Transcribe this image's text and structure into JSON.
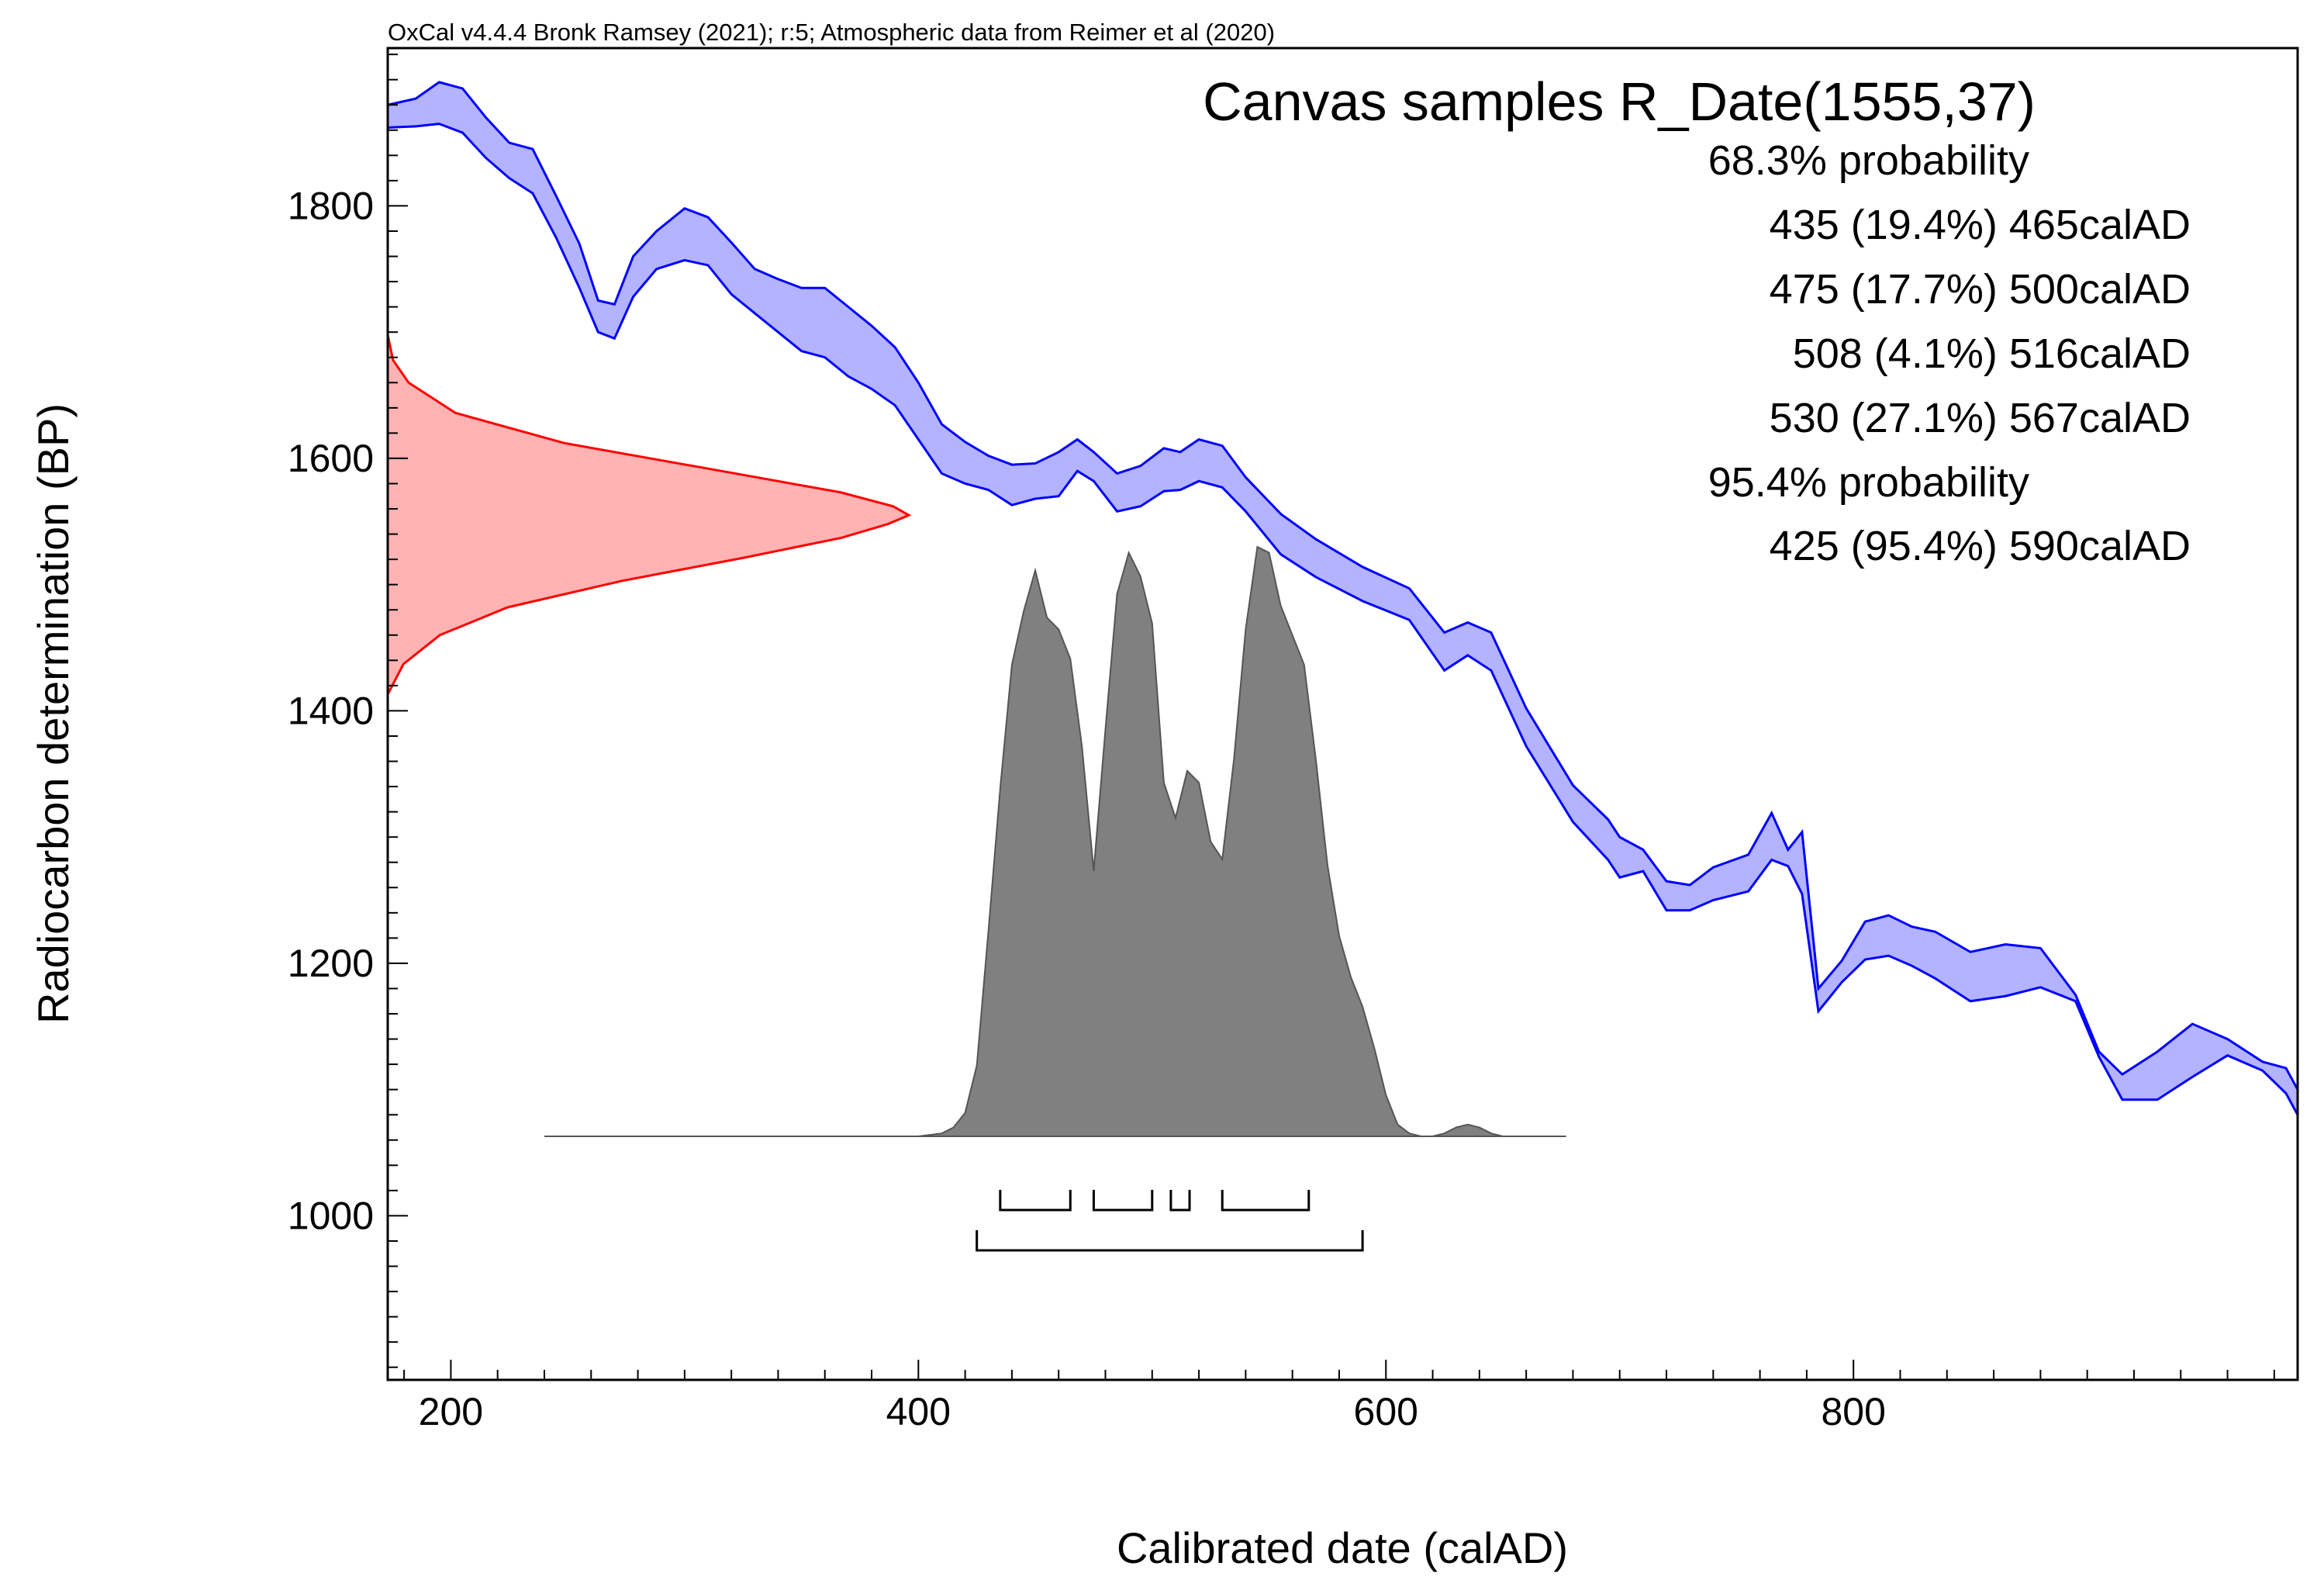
{
  "chart_data": {
    "type": "area",
    "credit": "OxCal v4.4.4 Bronk Ramsey (2021); r:5; Atmospheric data from Reimer et al (2020)",
    "title": "Canvas samples R_Date(1555,37)",
    "xlabel": "Calibrated date (calAD)",
    "ylabel": "Radiocarbon determination (BP)",
    "xlim": [
      173,
      990
    ],
    "ylim": [
      870,
      1925
    ],
    "x_ticks": [
      200,
      400,
      600,
      800
    ],
    "y_ticks": [
      1000,
      1200,
      1400,
      1600,
      1800
    ],
    "grid": false,
    "colors": {
      "calibration_curve": "#0000ff",
      "calibration_fill": "#b3b3ff",
      "radiocarbon": "#ff0000",
      "radiocarbon_fill": "#ffb3b3",
      "posterior": "#808080"
    },
    "radiocarbon_date": {
      "mean_bp": 1555,
      "error": 37
    },
    "probability_ranges": {
      "sigma1_header": "68.3% probability",
      "sigma1": [
        {
          "text": "435 (19.4%) 465calAD",
          "from": 435,
          "to": 465
        },
        {
          "text": "475 (17.7%) 500calAD",
          "from": 475,
          "to": 500
        },
        {
          "text": "508 (4.1%) 516calAD",
          "from": 508,
          "to": 516
        },
        {
          "text": "530 (27.1%) 567calAD",
          "from": 530,
          "to": 567
        }
      ],
      "sigma2_header": "95.4% probability",
      "sigma2": [
        {
          "text": "425 (95.4%) 590calAD",
          "from": 425,
          "to": 590
        }
      ]
    },
    "calibration_curve": {
      "x": [
        173,
        185,
        195,
        205,
        215,
        225,
        235,
        245,
        255,
        263,
        270,
        278,
        288,
        300,
        310,
        320,
        330,
        340,
        350,
        360,
        370,
        380,
        390,
        400,
        410,
        420,
        430,
        440,
        450,
        460,
        468,
        475,
        485,
        495,
        505,
        512,
        520,
        530,
        540,
        555,
        570,
        590,
        610,
        625,
        635,
        645,
        660,
        680,
        695,
        700,
        710,
        720,
        730,
        740,
        755,
        765,
        772,
        778,
        785,
        795,
        805,
        815,
        825,
        835,
        850,
        865,
        880,
        895,
        905,
        915,
        930,
        945,
        960,
        975,
        985,
        990
      ],
      "lower": [
        1862,
        1863,
        1865,
        1858,
        1838,
        1822,
        1810,
        1775,
        1735,
        1700,
        1695,
        1728,
        1750,
        1757,
        1753,
        1730,
        1715,
        1700,
        1685,
        1680,
        1665,
        1655,
        1642,
        1615,
        1588,
        1580,
        1575,
        1563,
        1568,
        1570,
        1590,
        1582,
        1558,
        1562,
        1574,
        1575,
        1582,
        1577,
        1558,
        1524,
        1506,
        1487,
        1472,
        1432,
        1444,
        1432,
        1372,
        1312,
        1282,
        1268,
        1273,
        1242,
        1242,
        1250,
        1257,
        1282,
        1277,
        1255,
        1162,
        1185,
        1203,
        1206,
        1198,
        1188,
        1170,
        1174,
        1181,
        1170,
        1126,
        1092,
        1092,
        1110,
        1127,
        1115,
        1097,
        1080
      ],
      "upper": [
        1880,
        1885,
        1898,
        1893,
        1870,
        1850,
        1845,
        1808,
        1770,
        1725,
        1722,
        1760,
        1780,
        1798,
        1791,
        1771,
        1750,
        1742,
        1735,
        1735,
        1720,
        1705,
        1688,
        1660,
        1627,
        1613,
        1602,
        1595,
        1596,
        1605,
        1615,
        1605,
        1588,
        1594,
        1608,
        1605,
        1615,
        1610,
        1585,
        1556,
        1536,
        1514,
        1497,
        1462,
        1470,
        1462,
        1402,
        1341,
        1314,
        1300,
        1290,
        1265,
        1262,
        1276,
        1286,
        1319,
        1290,
        1304,
        1180,
        1202,
        1233,
        1238,
        1229,
        1225,
        1209,
        1215,
        1212,
        1175,
        1130,
        1112,
        1130,
        1152,
        1140,
        1122,
        1117,
        1100
      ]
    },
    "radiocarbon_distribution": {
      "y": [
        1413,
        1437,
        1460,
        1482,
        1503,
        1521,
        1537,
        1548,
        1555,
        1562,
        1573,
        1590,
        1612,
        1636,
        1660,
        1678,
        1698
      ],
      "density": [
        0,
        0.03,
        0.1,
        0.23,
        0.45,
        0.68,
        0.87,
        0.96,
        1.0,
        0.97,
        0.87,
        0.64,
        0.34,
        0.13,
        0.04,
        0.01,
        0
      ]
    },
    "posterior": {
      "x": [
        240,
        300,
        400,
        410,
        415,
        420,
        425,
        430,
        435,
        440,
        445,
        450,
        455,
        460,
        465,
        470,
        475,
        480,
        485,
        490,
        495,
        500,
        505,
        510,
        515,
        520,
        525,
        530,
        535,
        540,
        545,
        550,
        555,
        560,
        565,
        570,
        575,
        580,
        585,
        590,
        595,
        600,
        605,
        610,
        615,
        620,
        625,
        630,
        635,
        640,
        645,
        650,
        660,
        677
      ],
      "density": [
        0,
        0,
        0,
        0.005,
        0.015,
        0.04,
        0.12,
        0.35,
        0.59,
        0.8,
        0.89,
        0.96,
        0.88,
        0.86,
        0.81,
        0.66,
        0.45,
        0.69,
        0.92,
        0.99,
        0.95,
        0.87,
        0.6,
        0.54,
        0.62,
        0.6,
        0.5,
        0.47,
        0.64,
        0.86,
        1.0,
        0.99,
        0.9,
        0.85,
        0.8,
        0.64,
        0.46,
        0.34,
        0.27,
        0.22,
        0.15,
        0.07,
        0.02,
        0.005,
        0,
        0,
        0.005,
        0.015,
        0.02,
        0.015,
        0.005,
        0,
        0,
        0
      ]
    }
  }
}
